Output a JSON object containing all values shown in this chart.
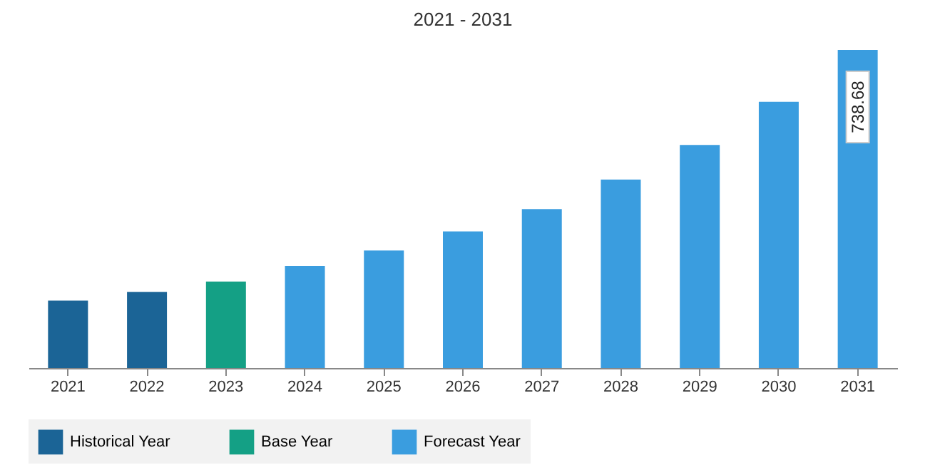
{
  "chart_data": {
    "type": "bar",
    "title": "2021 - 2031",
    "categories": [
      "2021",
      "2022",
      "2023",
      "2024",
      "2025",
      "2026",
      "2027",
      "2028",
      "2029",
      "2030",
      "2031"
    ],
    "series": [
      {
        "name": "Historical Year",
        "color": "#1b6496",
        "values": [
          156.6,
          176.6,
          null,
          null,
          null,
          null,
          null,
          null,
          null,
          null,
          null
        ]
      },
      {
        "name": "Base Year",
        "color": "#14a085",
        "values": [
          null,
          null,
          200.7,
          null,
          null,
          null,
          null,
          null,
          null,
          null,
          null
        ]
      },
      {
        "name": "Forecast Year",
        "color": "#3a9ddf",
        "values": [
          null,
          null,
          null,
          236.9,
          273,
          317,
          369,
          437.6,
          518,
          618,
          738.68
        ],
        "value_labels": [
          null,
          null,
          null,
          null,
          null,
          null,
          null,
          null,
          null,
          null,
          "738.68"
        ]
      }
    ],
    "legend": "bottom",
    "grid": false
  }
}
